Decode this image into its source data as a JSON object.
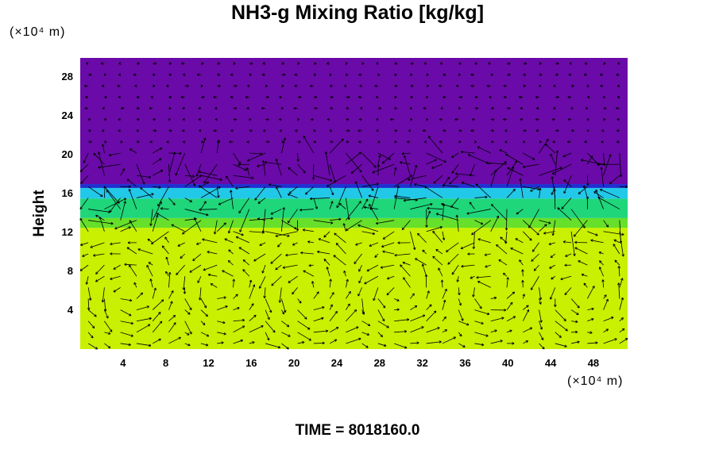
{
  "chart_data": {
    "type": "heatmap",
    "title": "NH3-g Mixing Ratio [kg/kg]",
    "ylabel": "Height",
    "xlabel": "",
    "x_unit": "(×10⁴ m)",
    "y_unit": "(×10⁴ m)",
    "x_ticks": [
      "4",
      "8",
      "12",
      "16",
      "20",
      "24",
      "28",
      "32",
      "36",
      "40",
      "44",
      "48"
    ],
    "y_ticks": [
      "4",
      "8",
      "12",
      "16",
      "20",
      "24",
      "28"
    ],
    "xlim": [
      0,
      51.2
    ],
    "ylim": [
      0,
      30
    ],
    "layers": [
      {
        "from": 0,
        "to": 12.5,
        "color": "#c8f000"
      },
      {
        "from": 12.5,
        "to": 13.5,
        "color": "#66e02a"
      },
      {
        "from": 13.5,
        "to": 15.5,
        "color": "#1fd67a"
      },
      {
        "from": 15.5,
        "to": 16.6,
        "color": "#22c8e8"
      },
      {
        "from": 16.6,
        "to": 17.0,
        "color": "#2030d0"
      },
      {
        "from": 17.0,
        "to": 30,
        "color": "#6a0aa8"
      }
    ],
    "vectors": "wind vector field overlay",
    "time_label": "TIME = 8018160.0"
  },
  "colors": {
    "background": "#ffffff",
    "vector": "#000000"
  }
}
